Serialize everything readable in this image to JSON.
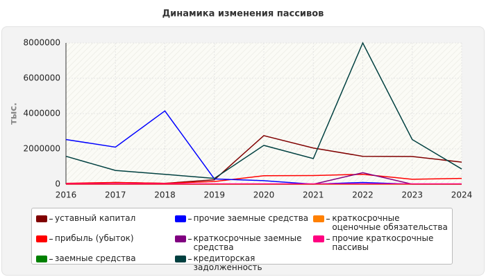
{
  "chart_data": {
    "type": "line",
    "title": "Динамика изменения пассивов",
    "y_label": "тыс.",
    "categories": [
      "2016",
      "2017",
      "2018",
      "2019",
      "2020",
      "2021",
      "2022",
      "2023",
      "2024"
    ],
    "ylim": [
      0,
      8000000
    ],
    "yticks": [
      0,
      2000000,
      4000000,
      6000000,
      8000000
    ],
    "grid": true,
    "series": [
      {
        "name": "уставный капитал",
        "color": "#800000",
        "values": [
          0,
          100000,
          50000,
          250000,
          2750000,
          2050000,
          1580000,
          1570000,
          1250000
        ]
      },
      {
        "name": "прибыль (убыток)",
        "color": "#ff0000",
        "values": [
          50000,
          100000,
          50000,
          150000,
          480000,
          490000,
          560000,
          280000,
          330000
        ]
      },
      {
        "name": "заемные средства",
        "color": "#008000",
        "values": [
          0,
          0,
          0,
          0,
          0,
          0,
          0,
          0,
          0
        ]
      },
      {
        "name": "прочие заемные средства",
        "color": "#0000ff",
        "values": [
          2530000,
          2100000,
          4150000,
          300000,
          200000,
          0,
          100000,
          0,
          0
        ]
      },
      {
        "name": "краткосрочные заемные средства",
        "color": "#800080",
        "values": [
          0,
          0,
          0,
          0,
          0,
          0,
          650000,
          0,
          0
        ]
      },
      {
        "name": "кредиторская задолженность",
        "color": "#004040",
        "values": [
          1580000,
          780000,
          560000,
          330000,
          2200000,
          1450000,
          8000000,
          2530000,
          860000
        ]
      },
      {
        "name": "краткосрочные оценочные обязательства",
        "color": "#ff8000",
        "values": [
          0,
          0,
          0,
          0,
          0,
          0,
          0,
          0,
          0
        ]
      },
      {
        "name": "прочие краткосрочные пассивы",
        "color": "#ff0080",
        "values": [
          20000,
          20000,
          20000,
          20000,
          20000,
          20000,
          20000,
          20000,
          20000
        ]
      }
    ]
  }
}
